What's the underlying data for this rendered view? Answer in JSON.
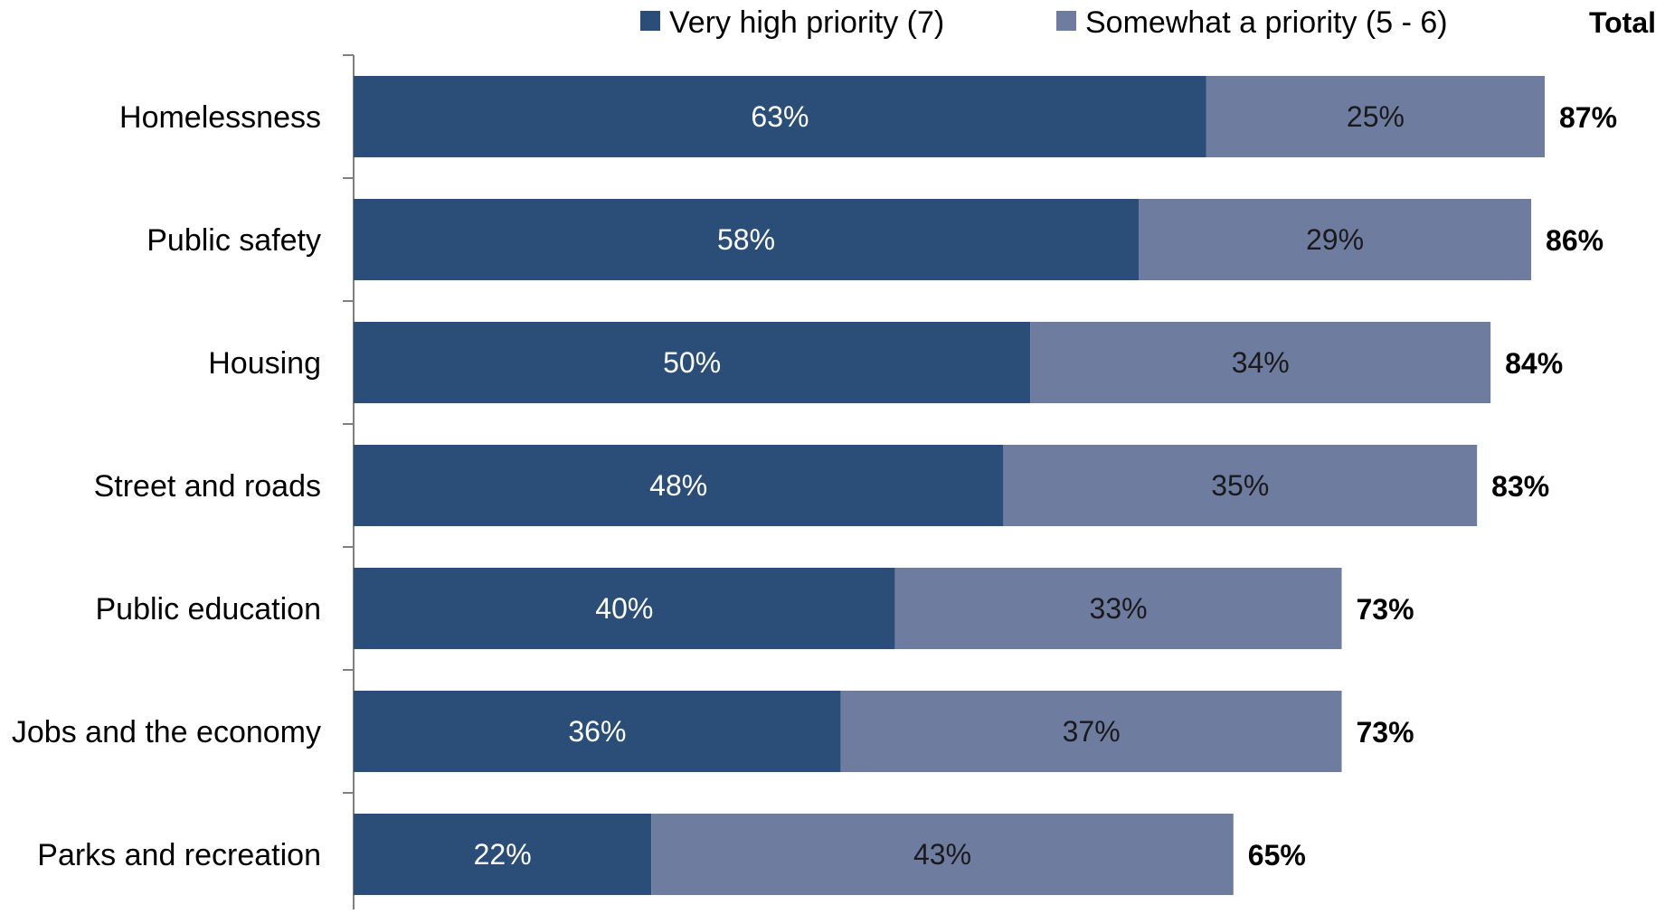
{
  "chart_data": {
    "type": "bar",
    "orientation": "horizontal",
    "stacked": true,
    "categories": [
      "Homelessness",
      "Public safety",
      "Housing",
      "Street and roads",
      "Public education",
      "Jobs and the economy",
      "Parks and recreation"
    ],
    "series": [
      {
        "name": "Very high priority (7)",
        "color": "#2a4e78",
        "values": [
          63,
          58,
          50,
          48,
          40,
          36,
          22
        ],
        "labels": [
          "63%",
          "58%",
          "50%",
          "48%",
          "40%",
          "36%",
          "22%"
        ]
      },
      {
        "name": "Somewhat a priority (5 - 6)",
        "color": "#6e7d9f",
        "values": [
          25,
          29,
          34,
          35,
          33,
          37,
          43
        ],
        "labels": [
          "25%",
          "29%",
          "34%",
          "35%",
          "33%",
          "37%",
          "43%"
        ]
      }
    ],
    "totals_header": "Total",
    "totals": [
      87,
      86,
      84,
      83,
      73,
      73,
      65
    ],
    "total_labels": [
      "87%",
      "86%",
      "84%",
      "83%",
      "73%",
      "73%",
      "65%"
    ],
    "xlim": [
      0,
      88
    ],
    "grid": false,
    "legend_position": "top"
  }
}
